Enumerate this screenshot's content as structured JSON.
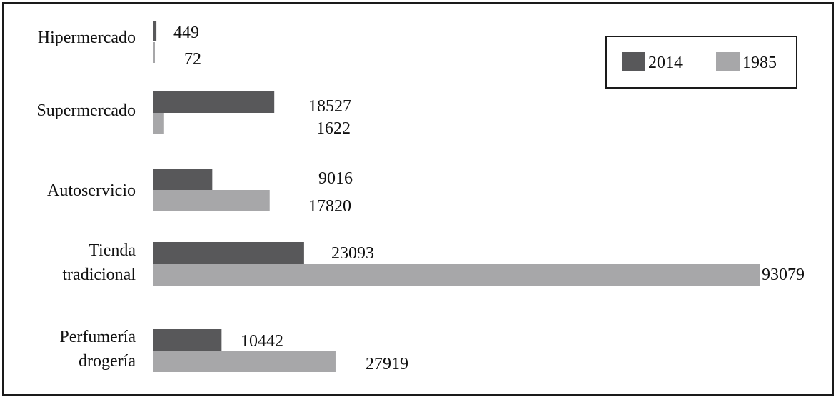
{
  "chart_data": {
    "type": "bar",
    "orientation": "horizontal",
    "categories": [
      [
        "Hipermercado"
      ],
      [
        "Supermercado"
      ],
      [
        "Autoservicio"
      ],
      [
        "Tienda",
        "tradicional"
      ],
      [
        "Perfumería",
        "drogería"
      ]
    ],
    "series": [
      {
        "name": "2014",
        "color": "#58585a",
        "values": [
          449,
          18527,
          9016,
          23093,
          10442
        ]
      },
      {
        "name": "1985",
        "color": "#a7a7a9",
        "values": [
          72,
          1622,
          17820,
          93079,
          27919
        ]
      }
    ],
    "xlim": [
      0,
      93079
    ],
    "grid": false,
    "legend": "top-right"
  }
}
